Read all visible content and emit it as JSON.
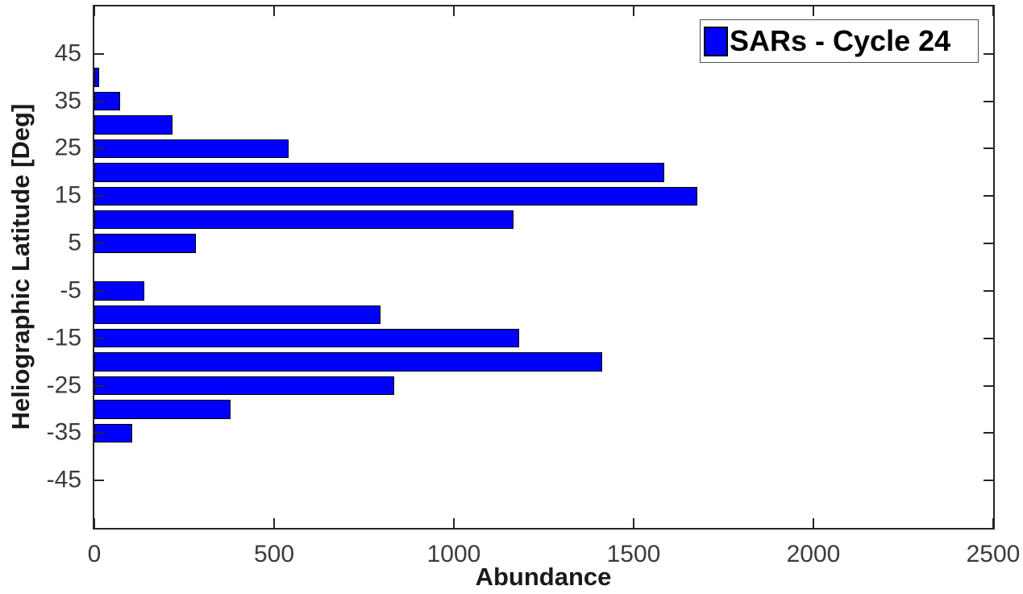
{
  "figure": {
    "background": "#ffffff"
  },
  "chart_data": {
    "type": "bar",
    "orientation": "horizontal",
    "title": "",
    "xlabel": "Abundance",
    "ylabel": "Heliographic Latitude [Deg]",
    "legend": [
      "SARs - Cycle 24"
    ],
    "legend_position": "northeast",
    "categories": [
      40,
      35,
      30,
      25,
      20,
      15,
      10,
      5,
      0,
      -5,
      -10,
      -15,
      -20,
      -25,
      -30,
      -35
    ],
    "values": [
      13,
      72,
      218,
      540,
      1586,
      1678,
      1167,
      282,
      0,
      140,
      797,
      1181,
      1413,
      833,
      379,
      105
    ],
    "xlim": [
      0,
      2500
    ],
    "ylim": [
      -55,
      55
    ],
    "xticks": [
      0,
      500,
      1000,
      1500,
      2000,
      2500
    ],
    "yticks": [
      45,
      35,
      25,
      15,
      5,
      -5,
      -15,
      -25,
      -35,
      -45
    ],
    "bin_width_deg": 5,
    "bar_fraction": 0.8,
    "grid": false,
    "colors": {
      "bar_fill": "#0000ff",
      "bar_edge": "#000000",
      "axis_box": "#262626",
      "tick_label": "#3b3b3b",
      "axis_label": "#1a1a1a",
      "legend_text": "#000000",
      "background": "#ffffff"
    }
  }
}
